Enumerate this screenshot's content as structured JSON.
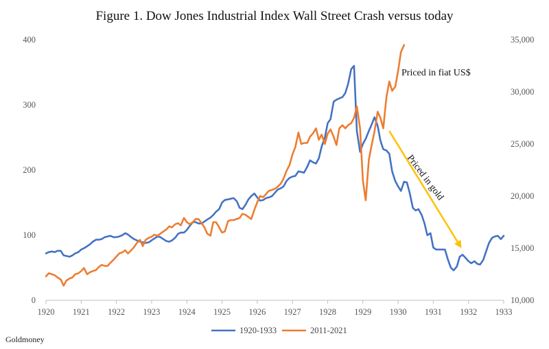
{
  "chart_data": {
    "type": "line",
    "title": "Figure 1. Dow Jones Industrial Index Wall Street Crash versus today",
    "source": "Goldmoney",
    "x_ticks": [
      "1920",
      "1921",
      "1922",
      "1923",
      "1924",
      "1925",
      "1926",
      "1927",
      "1928",
      "1929",
      "1930",
      "1931",
      "1932",
      "1933"
    ],
    "xlim": [
      1920,
      1933
    ],
    "y_left_ticks": [
      "0",
      "100",
      "200",
      "300",
      "400"
    ],
    "ylim_left": [
      0,
      400
    ],
    "y_right_ticks": [
      "10,000",
      "15,000",
      "20,000",
      "25,000",
      "30,000",
      "35,000"
    ],
    "ylim_right": [
      10000,
      35000
    ],
    "legend_position": "bottom",
    "grid": false,
    "series": [
      {
        "name": "1920-1933",
        "axis": "left",
        "color": "#4472c4",
        "points": [
          [
            1920.0,
            72
          ],
          [
            1920.08,
            74
          ],
          [
            1920.17,
            75
          ],
          [
            1920.25,
            74
          ],
          [
            1920.33,
            76
          ],
          [
            1920.42,
            76
          ],
          [
            1920.5,
            69
          ],
          [
            1920.58,
            68
          ],
          [
            1920.67,
            67
          ],
          [
            1920.75,
            69
          ],
          [
            1920.83,
            72
          ],
          [
            1920.92,
            74
          ],
          [
            1921.0,
            78
          ],
          [
            1921.08,
            80
          ],
          [
            1921.17,
            83
          ],
          [
            1921.25,
            86
          ],
          [
            1921.33,
            90
          ],
          [
            1921.42,
            93
          ],
          [
            1921.5,
            93
          ],
          [
            1921.58,
            94
          ],
          [
            1921.67,
            97
          ],
          [
            1921.75,
            98
          ],
          [
            1921.83,
            99
          ],
          [
            1921.92,
            97
          ],
          [
            1922.0,
            97
          ],
          [
            1922.08,
            98
          ],
          [
            1922.17,
            100
          ],
          [
            1922.25,
            103
          ],
          [
            1922.33,
            101
          ],
          [
            1922.42,
            97
          ],
          [
            1922.5,
            94
          ],
          [
            1922.58,
            92
          ],
          [
            1922.67,
            90
          ],
          [
            1922.75,
            89
          ],
          [
            1922.83,
            88
          ],
          [
            1922.92,
            89
          ],
          [
            1923.0,
            92
          ],
          [
            1923.08,
            95
          ],
          [
            1923.17,
            98
          ],
          [
            1923.25,
            97
          ],
          [
            1923.33,
            94
          ],
          [
            1923.42,
            91
          ],
          [
            1923.5,
            90
          ],
          [
            1923.58,
            92
          ],
          [
            1923.67,
            96
          ],
          [
            1923.75,
            102
          ],
          [
            1923.83,
            104
          ],
          [
            1923.92,
            104
          ],
          [
            1924.0,
            108
          ],
          [
            1924.08,
            114
          ],
          [
            1924.17,
            120
          ],
          [
            1924.25,
            120
          ],
          [
            1924.33,
            118
          ],
          [
            1924.42,
            118
          ],
          [
            1924.5,
            121
          ],
          [
            1924.58,
            124
          ],
          [
            1924.67,
            127
          ],
          [
            1924.75,
            131
          ],
          [
            1924.83,
            136
          ],
          [
            1924.92,
            140
          ],
          [
            1925.0,
            150
          ],
          [
            1925.08,
            154
          ],
          [
            1925.17,
            155
          ],
          [
            1925.25,
            156
          ],
          [
            1925.33,
            157
          ],
          [
            1925.42,
            152
          ],
          [
            1925.5,
            142
          ],
          [
            1925.58,
            140
          ],
          [
            1925.67,
            147
          ],
          [
            1925.75,
            155
          ],
          [
            1925.83,
            160
          ],
          [
            1925.92,
            164
          ],
          [
            1926.0,
            158
          ],
          [
            1926.08,
            153
          ],
          [
            1926.17,
            154
          ],
          [
            1926.25,
            157
          ],
          [
            1926.33,
            158
          ],
          [
            1926.42,
            160
          ],
          [
            1926.5,
            165
          ],
          [
            1926.58,
            170
          ],
          [
            1926.67,
            172
          ],
          [
            1926.75,
            175
          ],
          [
            1926.83,
            183
          ],
          [
            1926.92,
            188
          ],
          [
            1927.0,
            190
          ],
          [
            1927.08,
            191
          ],
          [
            1927.17,
            198
          ],
          [
            1927.25,
            197
          ],
          [
            1927.33,
            196
          ],
          [
            1927.42,
            205
          ],
          [
            1927.5,
            215
          ],
          [
            1927.58,
            212
          ],
          [
            1927.67,
            210
          ],
          [
            1927.75,
            218
          ],
          [
            1927.83,
            236
          ],
          [
            1927.92,
            250
          ],
          [
            1928.0,
            272
          ],
          [
            1928.08,
            278
          ],
          [
            1928.17,
            305
          ],
          [
            1928.25,
            308
          ],
          [
            1928.33,
            310
          ],
          [
            1928.42,
            312
          ],
          [
            1928.5,
            318
          ],
          [
            1928.58,
            332
          ],
          [
            1928.67,
            355
          ],
          [
            1928.75,
            360
          ],
          [
            1928.83,
            260
          ],
          [
            1928.92,
            228
          ],
          [
            1929.0,
            240
          ],
          [
            1929.08,
            248
          ],
          [
            1929.17,
            260
          ],
          [
            1929.25,
            270
          ],
          [
            1929.33,
            281
          ],
          [
            1929.42,
            268
          ],
          [
            1929.5,
            245
          ],
          [
            1929.58,
            232
          ],
          [
            1929.67,
            230
          ],
          [
            1929.75,
            225
          ],
          [
            1929.83,
            198
          ],
          [
            1929.92,
            183
          ],
          [
            1930.0,
            175
          ],
          [
            1930.08,
            168
          ],
          [
            1930.17,
            182
          ],
          [
            1930.25,
            181
          ],
          [
            1930.33,
            165
          ],
          [
            1930.42,
            142
          ],
          [
            1930.5,
            138
          ],
          [
            1930.58,
            140
          ],
          [
            1930.67,
            131
          ],
          [
            1930.75,
            118
          ],
          [
            1930.83,
            100
          ],
          [
            1930.92,
            103
          ],
          [
            1931.0,
            81
          ],
          [
            1931.08,
            78
          ],
          [
            1931.17,
            78
          ],
          [
            1931.25,
            78
          ],
          [
            1931.33,
            78
          ],
          [
            1931.42,
            62
          ],
          [
            1931.5,
            50
          ],
          [
            1931.58,
            46
          ],
          [
            1931.67,
            52
          ],
          [
            1931.75,
            67
          ],
          [
            1931.83,
            70
          ],
          [
            1931.92,
            65
          ],
          [
            1932.0,
            60
          ],
          [
            1932.08,
            57
          ],
          [
            1932.17,
            60
          ],
          [
            1932.25,
            56
          ],
          [
            1932.33,
            55
          ],
          [
            1932.42,
            62
          ],
          [
            1932.5,
            75
          ],
          [
            1932.58,
            88
          ],
          [
            1932.67,
            96
          ],
          [
            1932.75,
            98
          ],
          [
            1932.83,
            99
          ],
          [
            1932.92,
            94
          ],
          [
            1933.0,
            99
          ]
        ]
      },
      {
        "name": "2011-2021",
        "axis": "right",
        "color": "#ed7d31",
        "points": [
          [
            1920.0,
            12300
          ],
          [
            1920.08,
            12600
          ],
          [
            1920.17,
            12500
          ],
          [
            1920.25,
            12400
          ],
          [
            1920.33,
            12200
          ],
          [
            1920.42,
            12000
          ],
          [
            1920.5,
            11400
          ],
          [
            1920.58,
            11900
          ],
          [
            1920.67,
            12100
          ],
          [
            1920.75,
            12200
          ],
          [
            1920.83,
            12500
          ],
          [
            1920.92,
            12600
          ],
          [
            1921.0,
            12800
          ],
          [
            1921.08,
            13100
          ],
          [
            1921.17,
            12500
          ],
          [
            1921.25,
            12700
          ],
          [
            1921.33,
            12800
          ],
          [
            1921.42,
            12900
          ],
          [
            1921.5,
            13200
          ],
          [
            1921.58,
            13400
          ],
          [
            1921.67,
            13300
          ],
          [
            1921.75,
            13300
          ],
          [
            1921.83,
            13600
          ],
          [
            1921.92,
            13900
          ],
          [
            1922.0,
            14200
          ],
          [
            1922.08,
            14500
          ],
          [
            1922.17,
            14600
          ],
          [
            1922.25,
            14800
          ],
          [
            1922.33,
            14500
          ],
          [
            1922.42,
            14800
          ],
          [
            1922.5,
            15100
          ],
          [
            1922.58,
            15500
          ],
          [
            1922.67,
            15800
          ],
          [
            1922.75,
            15200
          ],
          [
            1922.83,
            15800
          ],
          [
            1922.92,
            16000
          ],
          [
            1923.0,
            16100
          ],
          [
            1923.08,
            16300
          ],
          [
            1923.17,
            16200
          ],
          [
            1923.25,
            16400
          ],
          [
            1923.33,
            16600
          ],
          [
            1923.42,
            16800
          ],
          [
            1923.5,
            17100
          ],
          [
            1923.58,
            17000
          ],
          [
            1923.67,
            17300
          ],
          [
            1923.75,
            17400
          ],
          [
            1923.83,
            17200
          ],
          [
            1923.92,
            17900
          ],
          [
            1924.0,
            17500
          ],
          [
            1924.08,
            17300
          ],
          [
            1924.17,
            17500
          ],
          [
            1924.25,
            17800
          ],
          [
            1924.33,
            17800
          ],
          [
            1924.42,
            17400
          ],
          [
            1924.5,
            17000
          ],
          [
            1924.58,
            16400
          ],
          [
            1924.67,
            16200
          ],
          [
            1924.75,
            17500
          ],
          [
            1924.83,
            17500
          ],
          [
            1924.92,
            17000
          ],
          [
            1925.0,
            16500
          ],
          [
            1925.08,
            16600
          ],
          [
            1925.17,
            17600
          ],
          [
            1925.25,
            17700
          ],
          [
            1925.33,
            17700
          ],
          [
            1925.42,
            17800
          ],
          [
            1925.5,
            17900
          ],
          [
            1925.58,
            18300
          ],
          [
            1925.67,
            18200
          ],
          [
            1925.75,
            18000
          ],
          [
            1925.83,
            17800
          ],
          [
            1925.92,
            18700
          ],
          [
            1926.0,
            19400
          ],
          [
            1926.08,
            20000
          ],
          [
            1926.17,
            19900
          ],
          [
            1926.25,
            20200
          ],
          [
            1926.33,
            20500
          ],
          [
            1926.42,
            20600
          ],
          [
            1926.5,
            20700
          ],
          [
            1926.58,
            20900
          ],
          [
            1926.67,
            21200
          ],
          [
            1926.75,
            21700
          ],
          [
            1926.83,
            22400
          ],
          [
            1926.92,
            23000
          ],
          [
            1927.0,
            24000
          ],
          [
            1927.08,
            24700
          ],
          [
            1927.17,
            26100
          ],
          [
            1927.25,
            25000
          ],
          [
            1927.33,
            25100
          ],
          [
            1927.42,
            25100
          ],
          [
            1927.5,
            25700
          ],
          [
            1927.58,
            26000
          ],
          [
            1927.67,
            26500
          ],
          [
            1927.75,
            25400
          ],
          [
            1927.83,
            25900
          ],
          [
            1927.92,
            25000
          ],
          [
            1928.0,
            26000
          ],
          [
            1928.08,
            26400
          ],
          [
            1928.17,
            25700
          ],
          [
            1928.25,
            24900
          ],
          [
            1928.33,
            26500
          ],
          [
            1928.42,
            26800
          ],
          [
            1928.5,
            26500
          ],
          [
            1928.58,
            26800
          ],
          [
            1928.67,
            27000
          ],
          [
            1928.75,
            27500
          ],
          [
            1928.83,
            28600
          ],
          [
            1928.92,
            26500
          ],
          [
            1929.0,
            21500
          ],
          [
            1929.08,
            19600
          ],
          [
            1929.17,
            23500
          ],
          [
            1929.25,
            24900
          ],
          [
            1929.33,
            26200
          ],
          [
            1929.42,
            28100
          ],
          [
            1929.5,
            27500
          ],
          [
            1929.58,
            26500
          ],
          [
            1929.67,
            29500
          ],
          [
            1929.75,
            31000
          ],
          [
            1929.83,
            30100
          ],
          [
            1929.92,
            30500
          ],
          [
            1930.0,
            32000
          ],
          [
            1930.08,
            33800
          ],
          [
            1930.17,
            34500
          ]
        ]
      }
    ],
    "annotations": {
      "fiat_label": "Priced in fiat US$",
      "gold_label": "Priced in gold",
      "arrow_color": "#ffc000",
      "arrow_from": [
        1929.75,
        260
      ],
      "arrow_to": [
        1931.8,
        80
      ]
    }
  }
}
